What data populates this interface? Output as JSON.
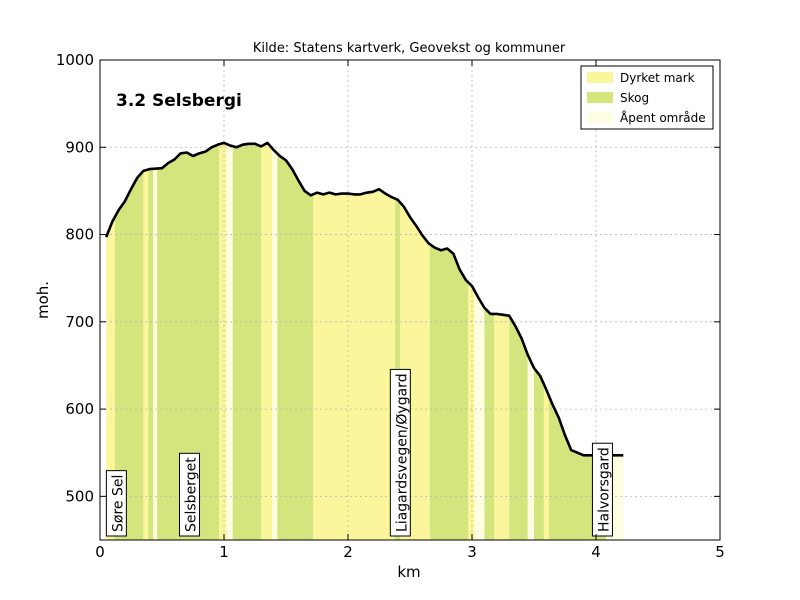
{
  "chart_data": {
    "type": "area",
    "title": "Kilde: Statens kartverk, Geovekst og kommuner",
    "inset_title": "3.2 Selsbergi",
    "xlabel": "km",
    "ylabel": "moh.",
    "xlim": [
      0,
      5
    ],
    "ylim": [
      450,
      1000
    ],
    "xticks": [
      0,
      1,
      2,
      3,
      4,
      5
    ],
    "yticks": [
      500,
      600,
      700,
      800,
      900,
      1000
    ],
    "grid": true,
    "legend_position": "top-right",
    "legend": [
      {
        "label": "Dyrket mark",
        "color": "#fbf69b",
        "key": "dyrket"
      },
      {
        "label": "Skog",
        "color": "#d4e57e",
        "key": "skog"
      },
      {
        "label": "Åpent område",
        "color": "#fffee2",
        "key": "apent"
      }
    ],
    "profile": {
      "x": [
        0.05,
        0.1,
        0.15,
        0.2,
        0.25,
        0.3,
        0.35,
        0.4,
        0.5,
        0.55,
        0.6,
        0.65,
        0.7,
        0.75,
        0.8,
        0.85,
        0.9,
        0.95,
        1.0,
        1.05,
        1.1,
        1.15,
        1.2,
        1.25,
        1.3,
        1.35,
        1.4,
        1.45,
        1.5,
        1.55,
        1.6,
        1.65,
        1.7,
        1.75,
        1.8,
        1.85,
        1.9,
        1.95,
        2.0,
        2.05,
        2.1,
        2.15,
        2.2,
        2.25,
        2.3,
        2.35,
        2.4,
        2.45,
        2.5,
        2.55,
        2.6,
        2.65,
        2.7,
        2.75,
        2.8,
        2.85,
        2.9,
        2.95,
        3.0,
        3.05,
        3.1,
        3.15,
        3.2,
        3.25,
        3.3,
        3.35,
        3.4,
        3.45,
        3.5,
        3.55,
        3.6,
        3.65,
        3.7,
        3.75,
        3.8,
        3.85,
        3.9,
        3.95,
        4.0,
        4.05,
        4.1,
        4.15,
        4.2,
        4.22
      ],
      "y": [
        797,
        815,
        828,
        838,
        852,
        865,
        873,
        875,
        876,
        882,
        886,
        893,
        894,
        890,
        893,
        895,
        900,
        903,
        905,
        902,
        900,
        903,
        904,
        904,
        901,
        905,
        897,
        890,
        885,
        875,
        862,
        850,
        845,
        848,
        846,
        848,
        846,
        847,
        847,
        846,
        846,
        848,
        849,
        852,
        847,
        843,
        840,
        832,
        820,
        810,
        799,
        790,
        785,
        782,
        784,
        778,
        760,
        748,
        741,
        728,
        716,
        709,
        709,
        708,
        707,
        695,
        681,
        662,
        647,
        638,
        622,
        605,
        590,
        570,
        553,
        550,
        547,
        547,
        547,
        547,
        547,
        547,
        547,
        547
      ]
    },
    "landcover_bands": [
      {
        "x0": 0.05,
        "x1": 0.12,
        "type": "dyrket"
      },
      {
        "x0": 0.12,
        "x1": 0.35,
        "type": "skog"
      },
      {
        "x0": 0.35,
        "x1": 0.39,
        "type": "dyrket"
      },
      {
        "x0": 0.39,
        "x1": 0.43,
        "type": "skog"
      },
      {
        "x0": 0.43,
        "x1": 0.46,
        "type": "apent"
      },
      {
        "x0": 0.46,
        "x1": 0.96,
        "type": "skog"
      },
      {
        "x0": 0.96,
        "x1": 1.02,
        "type": "dyrket"
      },
      {
        "x0": 1.02,
        "x1": 1.07,
        "type": "apent"
      },
      {
        "x0": 1.07,
        "x1": 1.3,
        "type": "skog"
      },
      {
        "x0": 1.3,
        "x1": 1.39,
        "type": "dyrket"
      },
      {
        "x0": 1.39,
        "x1": 1.43,
        "type": "apent"
      },
      {
        "x0": 1.43,
        "x1": 1.72,
        "type": "skog"
      },
      {
        "x0": 1.72,
        "x1": 2.38,
        "type": "dyrket"
      },
      {
        "x0": 2.38,
        "x1": 2.42,
        "type": "skog"
      },
      {
        "x0": 2.42,
        "x1": 2.66,
        "type": "dyrket"
      },
      {
        "x0": 2.66,
        "x1": 2.97,
        "type": "skog"
      },
      {
        "x0": 2.97,
        "x1": 3.02,
        "type": "dyrket"
      },
      {
        "x0": 3.02,
        "x1": 3.1,
        "type": "apent"
      },
      {
        "x0": 3.1,
        "x1": 3.18,
        "type": "skog"
      },
      {
        "x0": 3.18,
        "x1": 3.3,
        "type": "dyrket"
      },
      {
        "x0": 3.3,
        "x1": 3.45,
        "type": "skog"
      },
      {
        "x0": 3.45,
        "x1": 3.5,
        "type": "apent"
      },
      {
        "x0": 3.5,
        "x1": 3.58,
        "type": "skog"
      },
      {
        "x0": 3.58,
        "x1": 3.62,
        "type": "dyrket"
      },
      {
        "x0": 3.62,
        "x1": 4.08,
        "type": "skog"
      },
      {
        "x0": 4.08,
        "x1": 4.23,
        "type": "apent"
      }
    ],
    "place_labels": [
      {
        "text": "Søre Sel",
        "x": 0.14
      },
      {
        "text": "Selsberget",
        "x": 0.73
      },
      {
        "text": "Liagardsvegen/Øygard",
        "x": 2.43
      },
      {
        "text": "Halvorsgard",
        "x": 4.06
      }
    ]
  }
}
